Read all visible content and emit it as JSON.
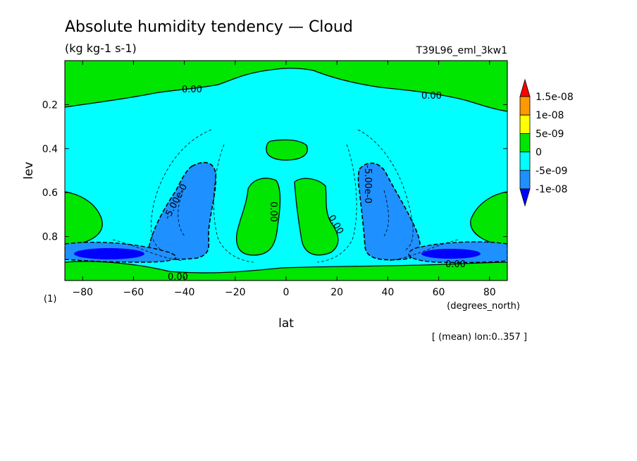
{
  "chart_data": {
    "type": "heatmap",
    "title": "Absolute humidity tendency — Cloud",
    "subtitle": "(kg kg-1 s-1)",
    "run_label": "T39L96_eml_3kw1",
    "panel_label": "(1)",
    "xlabel": "lat",
    "xunits": "(degrees_north)",
    "ylabel": "lev",
    "footnote": "[ (mean) lon:0..357 ]",
    "x_range": [
      -87,
      87
    ],
    "y_range": [
      0.0,
      1.0
    ],
    "y_reversed": true,
    "x_ticks": [
      -80,
      -60,
      -40,
      -20,
      0,
      20,
      40,
      60,
      80
    ],
    "x_tick_labels": [
      "−80",
      "−60",
      "−40",
      "−20",
      "0",
      "20",
      "40",
      "60",
      "80"
    ],
    "y_ticks": [
      0.2,
      0.4,
      0.6,
      0.8
    ],
    "y_tick_labels": [
      "0.2",
      "0.4",
      "0.6",
      "0.8"
    ],
    "colorbar": {
      "levels": [
        "1.5e-08",
        "1e-08",
        "5e-09",
        "0",
        "-5e-09",
        "-1e-08"
      ],
      "colors": [
        "#ff0000",
        "#ff9900",
        "#ffff00",
        "#00e600",
        "#00ffff",
        "#1e90ff",
        "#0000ff"
      ]
    },
    "contour_labels": [
      "0.00",
      "0.00",
      "0.00",
      "0.00",
      "0.00",
      "0.00",
      "-5.00e-0",
      "-5.00e-0"
    ],
    "regions": [
      {
        "level_band": "0 to 5e-09",
        "color": "#00e600",
        "desc": "upper band"
      },
      {
        "level_band": "-5e-09 to 0",
        "color": "#00ffff",
        "desc": "background"
      },
      {
        "level_band": "-1e-08 to -5e-09",
        "color": "#1e90ff",
        "desc": "midlatitude columns"
      },
      {
        "level_band": "below -1e-08",
        "color": "#0000ff",
        "desc": "near-surface cores"
      }
    ]
  }
}
